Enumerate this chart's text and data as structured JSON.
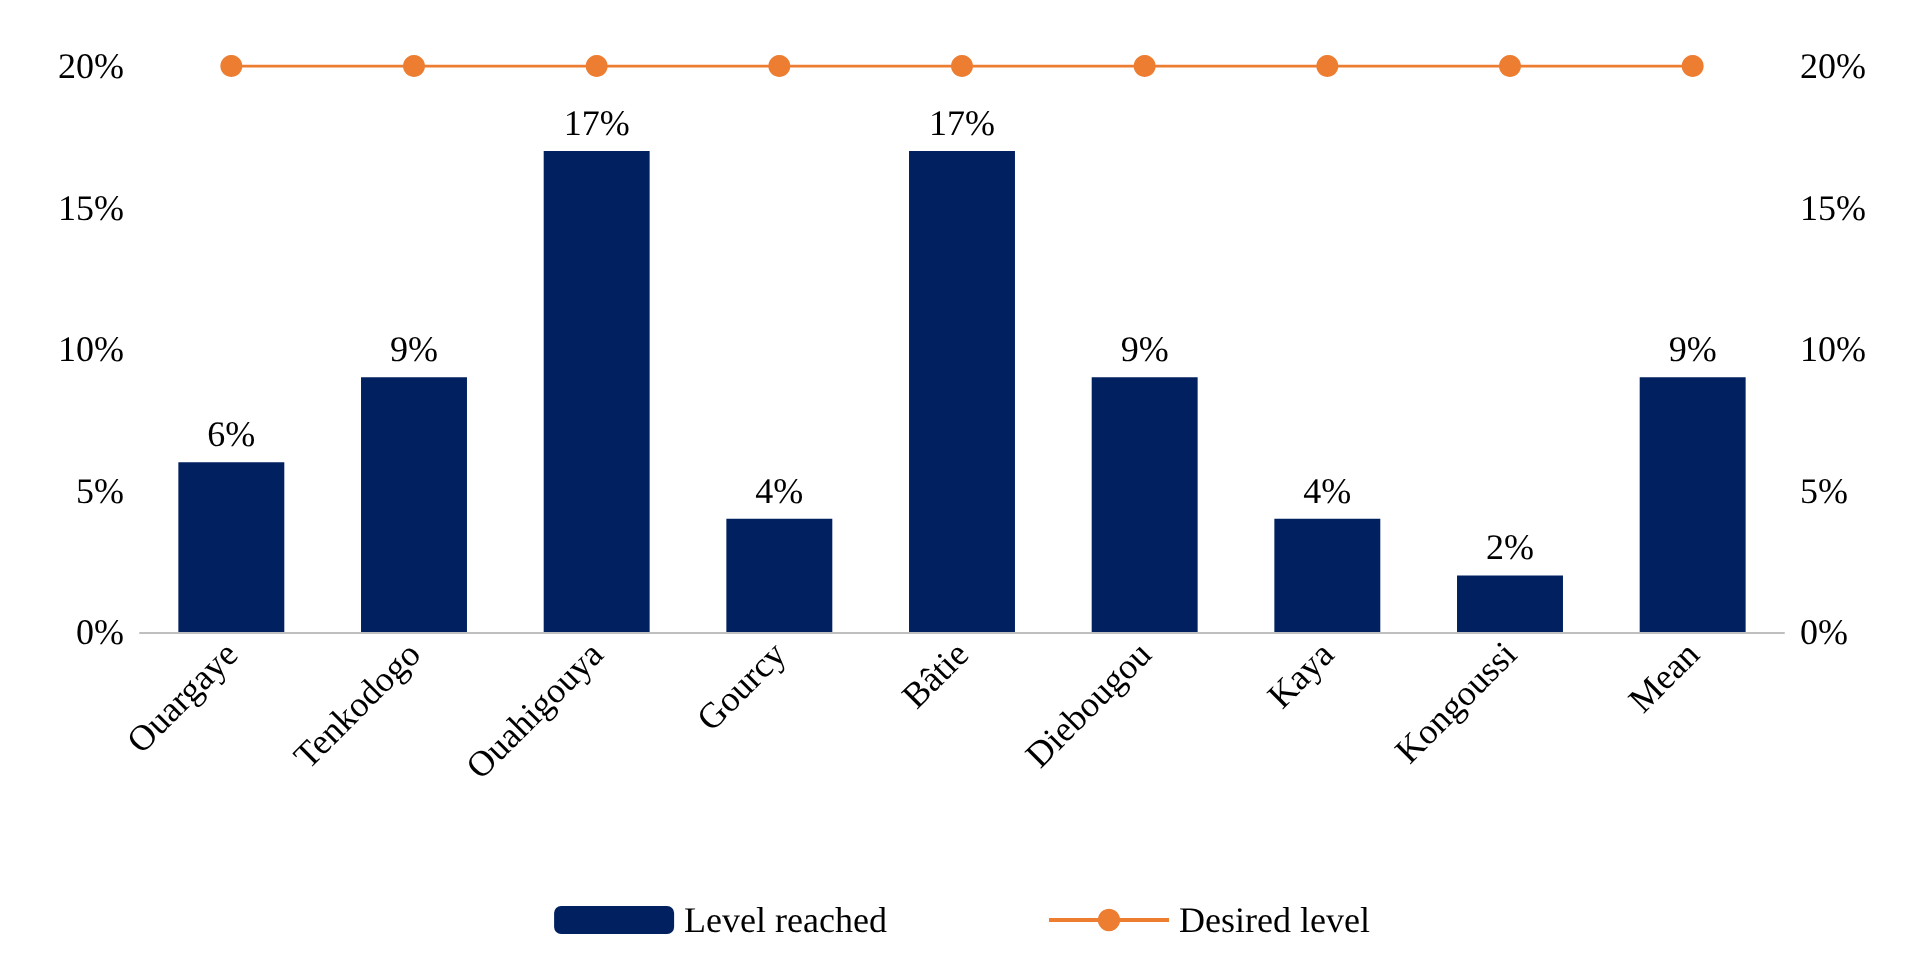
{
  "chart_data": {
    "type": "bar",
    "categories": [
      "Ouargaye",
      "Tenkodogo",
      "Ouahigouya",
      "Gourcy",
      "Bâtie",
      "Diebougou",
      "Kaya",
      "Kongoussi",
      "Mean"
    ],
    "series": [
      {
        "name": "Level reached",
        "color": "#002060",
        "values": [
          6,
          9,
          17,
          4,
          17,
          9,
          4,
          2,
          9
        ],
        "value_labels": [
          "6%",
          "9%",
          "17%",
          "4%",
          "17%",
          "9%",
          "4%",
          "2%",
          "9%"
        ]
      },
      {
        "name": "Desired level",
        "type": "line",
        "axis": "y2",
        "color": "#ed7d31",
        "marker": "circle",
        "values": [
          20,
          20,
          20,
          20,
          20,
          20,
          20,
          20,
          20
        ]
      }
    ],
    "ylim": [
      0,
      20
    ],
    "yticks": [
      {
        "value": 0,
        "label": "0%"
      },
      {
        "value": 5,
        "label": "5%"
      },
      {
        "value": 10,
        "label": "10%"
      },
      {
        "value": 15,
        "label": "15%"
      },
      {
        "value": 20,
        "label": "20%"
      }
    ],
    "y2lim": [
      0,
      20
    ],
    "y2ticks": [
      {
        "value": 0,
        "label": "0%"
      },
      {
        "value": 5,
        "label": "5%"
      },
      {
        "value": 10,
        "label": "10%"
      },
      {
        "value": 15,
        "label": "15%"
      },
      {
        "value": 20,
        "label": "20%"
      }
    ],
    "grid": false,
    "legend": "bottom"
  }
}
